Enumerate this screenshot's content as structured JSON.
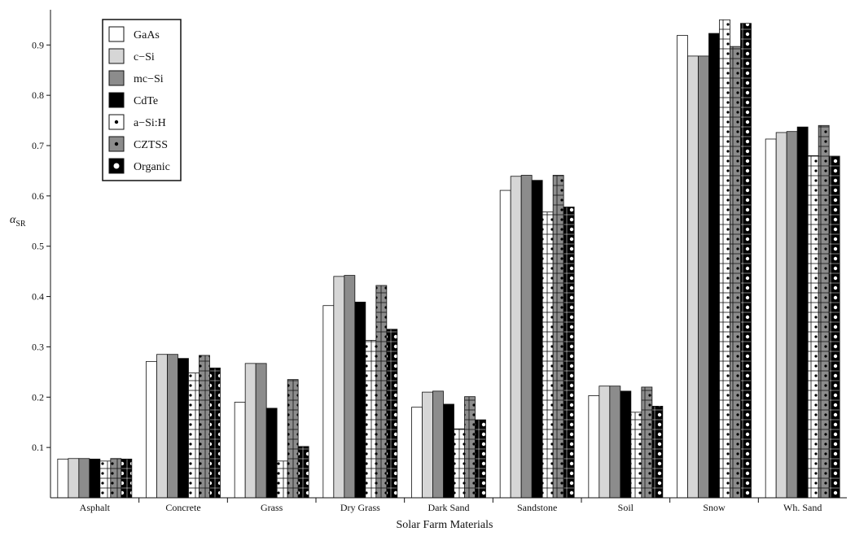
{
  "chart_data": {
    "type": "bar",
    "title": "",
    "xlabel": "Solar Farm Materials",
    "ylabel": "α",
    "ylabel_sub": "SR",
    "ylim": [
      0,
      0.97
    ],
    "yticks": [
      0.1,
      0.2,
      0.3,
      0.4,
      0.5,
      0.6,
      0.7,
      0.8,
      0.9
    ],
    "ytick_labels": [
      "0.1",
      "0.2",
      "0.3",
      "0.4",
      "0.5",
      "0.6",
      "0.7",
      "0.8",
      "0.9"
    ],
    "grid": false,
    "legend_position": "top-left",
    "categories": [
      "Asphalt",
      "Concrete",
      "Grass",
      "Dry Grass",
      "Dark Sand",
      "Sandstone",
      "Soil",
      "Snow",
      "Wh. Sand"
    ],
    "series": [
      {
        "name": "GaAs",
        "style": "white",
        "values": [
          0.077,
          0.271,
          0.19,
          0.382,
          0.18,
          0.611,
          0.203,
          0.919,
          0.713
        ]
      },
      {
        "name": "c−Si",
        "style": "lightgray",
        "values": [
          0.078,
          0.285,
          0.267,
          0.44,
          0.21,
          0.639,
          0.222,
          0.878,
          0.726
        ]
      },
      {
        "name": "mc−Si",
        "style": "gray",
        "values": [
          0.078,
          0.285,
          0.267,
          0.442,
          0.212,
          0.641,
          0.222,
          0.878,
          0.728
        ]
      },
      {
        "name": "CdTe",
        "style": "black",
        "values": [
          0.077,
          0.277,
          0.178,
          0.389,
          0.186,
          0.631,
          0.212,
          0.923,
          0.737
        ]
      },
      {
        "name": "a−Si:H",
        "style": "white-dots",
        "values": [
          0.073,
          0.248,
          0.073,
          0.313,
          0.137,
          0.568,
          0.17,
          0.95,
          0.68
        ]
      },
      {
        "name": "CZTSS",
        "style": "gray-dots",
        "values": [
          0.078,
          0.283,
          0.235,
          0.422,
          0.201,
          0.641,
          0.22,
          0.897,
          0.74
        ]
      },
      {
        "name": "Organic",
        "style": "black-dots",
        "values": [
          0.077,
          0.258,
          0.102,
          0.335,
          0.155,
          0.578,
          0.182,
          0.943,
          0.679
        ]
      }
    ],
    "colors": {
      "white": "#ffffff",
      "lightgray": "#d6d6d6",
      "gray": "#8c8c8c",
      "black": "#000000",
      "outline": "#111111"
    }
  }
}
